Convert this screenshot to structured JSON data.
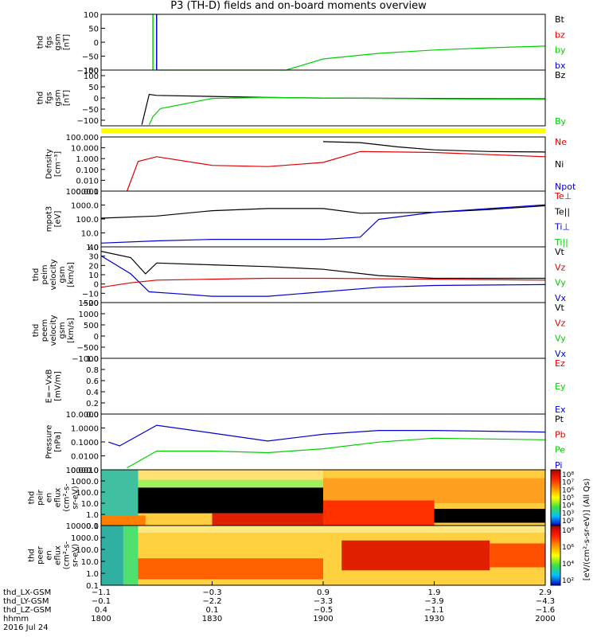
{
  "title": "P3 (TH-D) fields and on-board moments overview",
  "colors": {
    "black": "#000000",
    "red": "#e00000",
    "green": "#00d000",
    "blue": "#0000d0",
    "yellow": "#ffff00"
  },
  "panels": [
    {
      "id": "fgs",
      "ylabel": [
        "thd",
        "fgs",
        "gsm",
        "[nT]"
      ],
      "yticks": [
        "100",
        "50",
        "0",
        "−50",
        "−100"
      ],
      "legend": [
        {
          "text": "Bt",
          "color": "black"
        },
        {
          "text": "bz",
          "color": "red"
        },
        {
          "text": "by",
          "color": "green"
        },
        {
          "text": "bx",
          "color": "blue"
        }
      ]
    },
    {
      "id": "fgs2",
      "ylabel": [
        "thd",
        "fgs",
        "gsm",
        "[nT]"
      ],
      "ytop": "150",
      "yticks": [
        "100",
        "50",
        "0",
        "−50",
        "−100"
      ],
      "legend": [
        {
          "text": "Bz",
          "color": "black"
        },
        {
          "text": "By",
          "color": "green"
        }
      ]
    },
    {
      "id": "density",
      "ylabel": [
        "Density",
        "[cm⁻³]"
      ],
      "yticks": [
        "100.000",
        "10.000",
        "1.000",
        "0.100",
        "0.010",
        "0.001"
      ],
      "legend": [
        {
          "text": "Ne",
          "color": "red"
        },
        {
          "text": "Ni",
          "color": "black"
        },
        {
          "text": "Npot",
          "color": "blue"
        }
      ]
    },
    {
      "id": "temp",
      "ylabel": [
        "mpot3",
        "[eV]"
      ],
      "yticks": [
        "10000.0",
        "1000.0",
        "100.0",
        "10.0",
        "1.0"
      ],
      "legend": [
        {
          "text": "Te⊥",
          "color": "red"
        },
        {
          "text": "Te||",
          "color": "black"
        },
        {
          "text": "Ti⊥",
          "color": "blue"
        },
        {
          "text": "Ti||",
          "color": "green"
        }
      ]
    },
    {
      "id": "peim",
      "ylabel": [
        "thd",
        "peim",
        "velocity",
        "gsm",
        "[km/s]"
      ],
      "yticks": [
        "40",
        "30",
        "20",
        "10",
        "0",
        "−10",
        "−20"
      ],
      "legend": [
        {
          "text": "Vt",
          "color": "black"
        },
        {
          "text": "Vz",
          "color": "red"
        },
        {
          "text": "Vy",
          "color": "green"
        },
        {
          "text": "Vx",
          "color": "blue"
        }
      ]
    },
    {
      "id": "peem",
      "ylabel": [
        "thd",
        "peem",
        "velocity",
        "gsm",
        "[km/s]"
      ],
      "yticks": [
        "1500",
        "1000",
        "500",
        "0",
        "−500",
        "−1000"
      ],
      "legend": [
        {
          "text": "Vt",
          "color": "black"
        },
        {
          "text": "Vz",
          "color": "red"
        },
        {
          "text": "Vy",
          "color": "green"
        },
        {
          "text": "Vx",
          "color": "blue"
        }
      ]
    },
    {
      "id": "efield",
      "ylabel": [
        "E=−VxB",
        "[mV/m]"
      ],
      "yticks": [
        "1.0",
        "0.8",
        "0.6",
        "0.4",
        "0.2",
        "0.0"
      ],
      "legend": [
        {
          "text": "Ez",
          "color": "red"
        },
        {
          "text": "Ey",
          "color": "green"
        },
        {
          "text": "Ex",
          "color": "blue"
        }
      ]
    },
    {
      "id": "pressure",
      "ylabel": [
        "Pressure",
        "[nPa]"
      ],
      "yticks": [
        "10.0000",
        "1.0000",
        "0.1000",
        "0.0100",
        "0.0010"
      ],
      "legend": [
        {
          "text": "Pt",
          "color": "black"
        },
        {
          "text": "Pb",
          "color": "red"
        },
        {
          "text": "Pe",
          "color": "green"
        },
        {
          "text": "Pi",
          "color": "blue"
        }
      ]
    },
    {
      "id": "peir",
      "ylabel": [
        "thd",
        "peir",
        "en",
        "eflux",
        "(cm²-s-",
        "sr-eV)"
      ],
      "yticks": [
        "10000.0",
        "1000.0",
        "100.0",
        "10.0",
        "1.0",
        "0.1"
      ]
    },
    {
      "id": "peer",
      "ylabel": [
        "thd",
        "peer",
        "en",
        "eflux",
        "(cm²-s-",
        "sr-eV)"
      ],
      "yticks": [
        "10000.0",
        "1000.0",
        "100.0",
        "10.0",
        "1.0",
        "0.1"
      ]
    }
  ],
  "colorbar": {
    "label": "[eV/(cm²-s-sr-eV)] (All Qs)",
    "ticks": [
      "10⁸",
      "10⁷",
      "10⁶",
      "10⁵",
      "10⁴",
      "10³",
      "10²"
    ],
    "ticks2": [
      "10⁸",
      "10⁶",
      "10⁴",
      "10²"
    ]
  },
  "xaxis": {
    "row_labels": [
      "thd_LX-GSM",
      "thd_LY-GSM",
      "thd_LZ-GSM",
      "hhmm",
      "2016 Jul 24"
    ],
    "columns": [
      {
        "values": [
          "−1.1",
          "−0.1",
          "0.4",
          "1800"
        ]
      },
      {
        "values": [
          "−0.3",
          "−2.2",
          "0.1",
          "1830"
        ]
      },
      {
        "values": [
          "0.9",
          "−3.3",
          "−0.5",
          "1900"
        ]
      },
      {
        "values": [
          "1.9",
          "−3.9",
          "−1.1",
          "1930"
        ]
      },
      {
        "values": [
          "2.9",
          "−4.3",
          "−1.6",
          "2000"
        ]
      }
    ]
  },
  "chart_data": {
    "type": "line",
    "title": "P3 (TH-D) fields and on-board moments overview",
    "x_ticks_hhmm": [
      "1800",
      "1830",
      "1900",
      "1930",
      "2000"
    ],
    "series": [
      {
        "panel": "fgs",
        "name": "by",
        "x": [
          1815,
          1830,
          1840,
          1850,
          1900,
          1915,
          1930,
          1945,
          2000
        ],
        "values": [
          -100,
          -100,
          -100,
          -100,
          -60,
          -40,
          -28,
          -20,
          -14
        ]
      },
      {
        "panel": "fgs2",
        "name": "Bz",
        "x": [
          1811,
          1813,
          1815,
          1830,
          1845,
          1900,
          1930,
          2000
        ],
        "values": [
          -120,
          30,
          25,
          20,
          15,
          12,
          10,
          8
        ]
      },
      {
        "panel": "fgs2",
        "name": "By",
        "x": [
          1813,
          1814,
          1816,
          1830,
          1845,
          1900,
          1930,
          2000
        ],
        "values": [
          -120,
          -80,
          -40,
          10,
          15,
          12,
          8,
          6
        ]
      },
      {
        "panel": "density",
        "name": "Ne",
        "x": [
          1807,
          1810,
          1815,
          1830,
          1845,
          1900,
          1910,
          1930,
          2000
        ],
        "values": [
          0.001,
          1,
          3,
          0.4,
          0.3,
          0.8,
          10,
          8,
          3
        ]
      },
      {
        "panel": "density",
        "name": "Ni",
        "x": [
          1900,
          1910,
          1920,
          1930,
          1945,
          2000
        ],
        "values": [
          100,
          80,
          30,
          15,
          10,
          9
        ]
      },
      {
        "panel": "temp",
        "name": "Te||",
        "x": [
          1800,
          1815,
          1830,
          1845,
          1900,
          1910,
          1930,
          1945,
          2000
        ],
        "values": [
          100,
          150,
          400,
          600,
          600,
          250,
          300,
          500,
          1000
        ]
      },
      {
        "panel": "temp",
        "name": "Ti⊥",
        "x": [
          1800,
          1815,
          1830,
          1845,
          1900,
          1910,
          1915,
          1930,
          1945,
          2000
        ],
        "values": [
          1,
          1.5,
          2,
          2,
          2,
          3,
          80,
          300,
          600,
          1200
        ]
      },
      {
        "panel": "peim",
        "name": "Vt",
        "x": [
          1800,
          1808,
          1812,
          1815,
          1830,
          1845,
          1900,
          1915,
          1930,
          2000
        ],
        "values": [
          35,
          28,
          10,
          22,
          20,
          18,
          15,
          8,
          5,
          5
        ]
      },
      {
        "panel": "peim",
        "name": "Vx",
        "x": [
          1800,
          1808,
          1813,
          1820,
          1830,
          1845,
          1900,
          1915,
          1930,
          2000
        ],
        "values": [
          30,
          10,
          -10,
          -12,
          -15,
          -15,
          -10,
          -5,
          -3,
          -2
        ]
      },
      {
        "panel": "peim",
        "name": "Vz",
        "x": [
          1800,
          1808,
          1815,
          1830,
          1845,
          1900,
          1930,
          2000
        ],
        "values": [
          -5,
          0,
          3,
          4,
          5,
          5,
          4,
          3
        ]
      },
      {
        "panel": "pressure",
        "name": "Pi",
        "x": [
          1802,
          1805,
          1815,
          1830,
          1845,
          1900,
          1915,
          1930,
          2000
        ],
        "values": [
          0.1,
          0.05,
          2,
          0.5,
          0.12,
          0.4,
          0.8,
          0.8,
          0.6
        ]
      },
      {
        "panel": "pressure",
        "name": "Pe",
        "x": [
          1807,
          1815,
          1830,
          1845,
          1900,
          1915,
          1930,
          2000
        ],
        "values": [
          0.001,
          0.02,
          0.02,
          0.015,
          0.03,
          0.1,
          0.2,
          0.15
        ]
      }
    ]
  }
}
